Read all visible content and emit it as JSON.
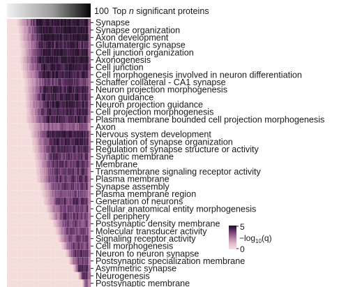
{
  "chart_data": {
    "type": "heatmap",
    "header": {
      "max_n": "100",
      "label_prefix": "Top ",
      "label_var": "n",
      "label_suffix": " significant proteins"
    },
    "color_scale": {
      "min": 0,
      "max": 5,
      "min_label": "0",
      "max_label": "5",
      "label": "−log10(q)",
      "colors": [
        "#f7e1de",
        "#e4c1ca",
        "#bf8aab",
        "#8c5487",
        "#4e2255",
        "#1f0a24"
      ]
    },
    "n_columns": 100,
    "rows": [
      {
        "term": "Synapse",
        "onset": 12,
        "peak": 4.6
      },
      {
        "term": "Synapse organization",
        "onset": 14,
        "peak": 4.8
      },
      {
        "term": "Axon development",
        "onset": 15,
        "peak": 4.5
      },
      {
        "term": "Glutamatergic synapse",
        "onset": 16,
        "peak": 4.0
      },
      {
        "term": "Cell junction organization",
        "onset": 17,
        "peak": 4.6
      },
      {
        "term": "Axonogenesis",
        "onset": 16,
        "peak": 4.7
      },
      {
        "term": "Cell junction",
        "onset": 17,
        "peak": 4.4
      },
      {
        "term": "Cell morphogenesis involved in neuron differentiation",
        "onset": 19,
        "peak": 4.3
      },
      {
        "term": "Schaffer collateral - CA1 synapse",
        "onset": 21,
        "peak": 3.3
      },
      {
        "term": "Neuron projection morphogenesis",
        "onset": 21,
        "peak": 4.1
      },
      {
        "term": "Axon guidance",
        "onset": 22,
        "peak": 4.3
      },
      {
        "term": "Neuron projection guidance",
        "onset": 22,
        "peak": 4.1
      },
      {
        "term": "Cell projection morphogenesis",
        "onset": 23,
        "peak": 4.0
      },
      {
        "term": "Plasma membrane bounded cell projection morphogenesis",
        "onset": 23,
        "peak": 3.9
      },
      {
        "term": "Axon",
        "onset": 26,
        "peak": 2.6
      },
      {
        "term": "Nervous system development",
        "onset": 28,
        "peak": 4.3
      },
      {
        "term": "Regulation of synapse organization",
        "onset": 30,
        "peak": 3.9
      },
      {
        "term": "Regulation of synapse structure or activity",
        "onset": 31,
        "peak": 3.7
      },
      {
        "term": "Synaptic membrane",
        "onset": 33,
        "peak": 3.5
      },
      {
        "term": "Membrane",
        "onset": 34,
        "peak": 3.4
      },
      {
        "term": "Transmembrane signaling receptor activity",
        "onset": 35,
        "peak": 3.3
      },
      {
        "term": "Plasma membrane",
        "onset": 36,
        "peak": 3.4
      },
      {
        "term": "Synapse assembly",
        "onset": 40,
        "peak": 3.1
      },
      {
        "term": "Plasma membrane region",
        "onset": 42,
        "peak": 3.0
      },
      {
        "term": "Generation of neurons",
        "onset": 44,
        "peak": 3.5
      },
      {
        "term": "Cellular anatomical entity morphogenesis",
        "onset": 47,
        "peak": 3.2
      },
      {
        "term": "Cell periphery",
        "onset": 50,
        "peak": 3.1
      },
      {
        "term": "Postsynaptic density membrane",
        "onset": 55,
        "peak": 3.0
      },
      {
        "term": "Molecular transducer activity",
        "onset": 58,
        "peak": 3.0
      },
      {
        "term": "Signaling receptor activity",
        "onset": 61,
        "peak": 3.0
      },
      {
        "term": "Cell morphogenesis",
        "onset": 65,
        "peak": 3.2
      },
      {
        "term": "Neuron to neuron synapse",
        "onset": 70,
        "peak": 3.3
      },
      {
        "term": "Postsynaptic specialization membrane",
        "onset": 74,
        "peak": 3.0
      },
      {
        "term": "Asymmetric synapse",
        "onset": 79,
        "peak": 3.4
      },
      {
        "term": "Neurogenesis",
        "onset": 85,
        "peak": 3.4
      },
      {
        "term": "Postsynaptic membrane",
        "onset": 90,
        "peak": 2.8
      }
    ]
  }
}
